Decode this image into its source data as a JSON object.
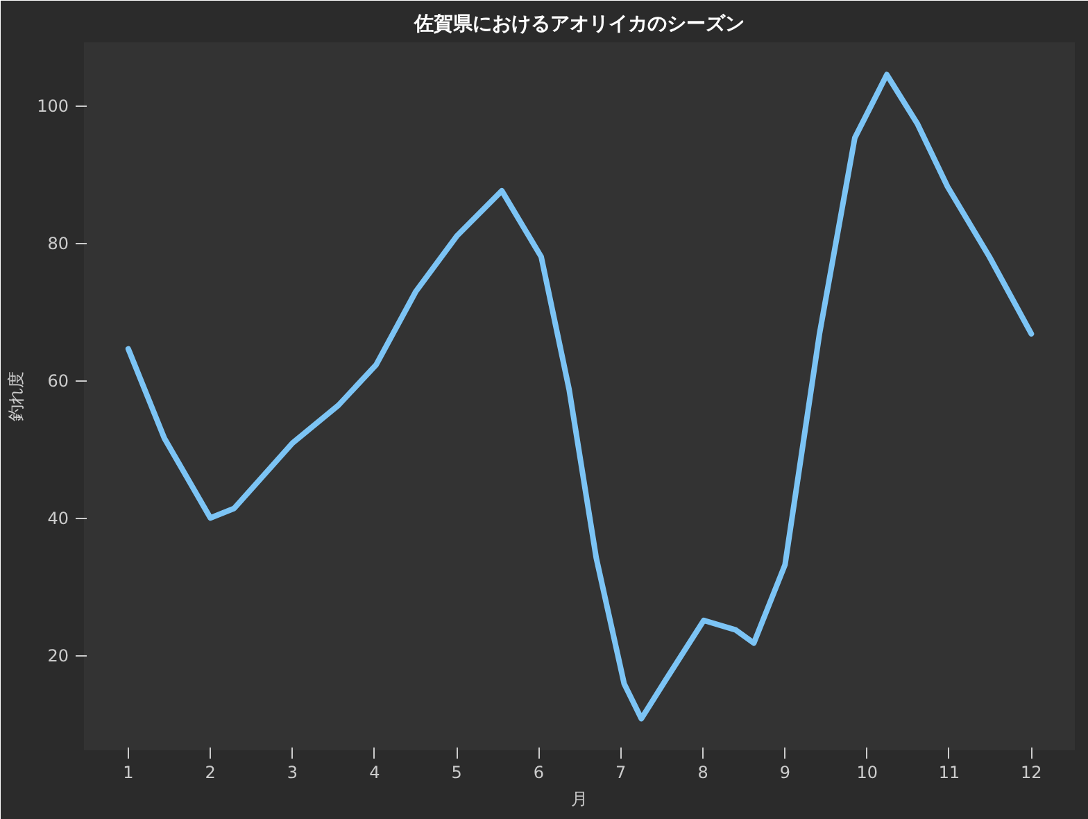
{
  "chart_data": {
    "type": "line",
    "title": "佐賀県におけるアオリイカのシーズン",
    "xlabel": "月",
    "ylabel": "釣れ度",
    "x": [
      1,
      1.44,
      2.0,
      2.29,
      3.0,
      3.56,
      4.02,
      4.5,
      5.0,
      5.55,
      6.03,
      6.37,
      6.7,
      7.04,
      7.25,
      7.55,
      8.01,
      8.4,
      8.62,
      9.0,
      9.42,
      9.85,
      10.24,
      10.61,
      10.98,
      11.49,
      12
    ],
    "series": [
      {
        "color": "#7cc4f5",
        "values": [
          64.6,
          51.6,
          40,
          41.4,
          50.9,
          56.4,
          62.3,
          72.9,
          81,
          87.6,
          78,
          58.7,
          34.2,
          15.9,
          10.8,
          16.5,
          25.1,
          23.7,
          21.8,
          33.2,
          66.8,
          95.3,
          104.5,
          97.4,
          88.2,
          78,
          66.8
        ]
      }
    ],
    "xlim": [
      0.46,
      12.53
    ],
    "ylim": [
      6.2,
      109.2
    ],
    "xticks": [
      1,
      2,
      3,
      4,
      5,
      6,
      7,
      8,
      9,
      10,
      11,
      12
    ],
    "yticks": [
      20,
      40,
      60,
      80,
      100
    ],
    "grid": false,
    "marker": "none",
    "line_style": "solid"
  }
}
